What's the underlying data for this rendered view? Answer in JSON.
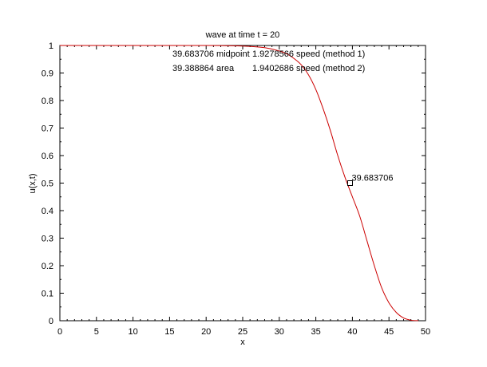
{
  "chart_data": {
    "type": "line",
    "title": "wave at time t = 20",
    "xlabel": "x",
    "ylabel": "u(x,t)",
    "xlim": [
      0,
      50
    ],
    "ylim": [
      0,
      1
    ],
    "grid": false,
    "x_ticks": [
      "0",
      "5",
      "10",
      "15",
      "20",
      "25",
      "30",
      "35",
      "40",
      "45",
      "50"
    ],
    "y_ticks": [
      "0",
      "0.1",
      "0.2",
      "0.3",
      "0.4",
      "0.5",
      "0.6",
      "0.7",
      "0.8",
      "0.9",
      "1"
    ],
    "series": [
      {
        "color": "#cc0000",
        "x": [
          0,
          5,
          10,
          15,
          20,
          25,
          28,
          30,
          31,
          32,
          33,
          34,
          35,
          36,
          37,
          38,
          39,
          40,
          41,
          42,
          43,
          44,
          45,
          46,
          47,
          48,
          49
        ],
        "y": [
          1.0,
          1.0,
          1.0,
          1.0,
          1.0,
          0.998,
          0.992,
          0.98,
          0.97,
          0.953,
          0.93,
          0.893,
          0.84,
          0.77,
          0.69,
          0.6,
          0.52,
          0.45,
          0.38,
          0.29,
          0.2,
          0.12,
          0.065,
          0.03,
          0.01,
          0.002,
          0.0
        ]
      }
    ],
    "marker": {
      "x": 39.683706,
      "y": 0.5,
      "label": "39.683706"
    },
    "annotations": {
      "midpoint": "39.683706 midpoint",
      "speed1": "1.9278566 speed (method 1)",
      "area": "39.388864 area",
      "speed2": "1.9402686 speed (method 2)"
    }
  }
}
